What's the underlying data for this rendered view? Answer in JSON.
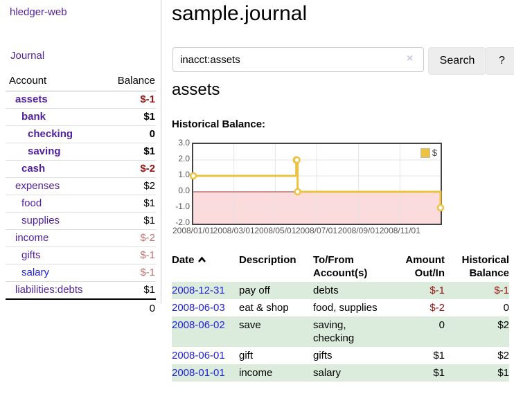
{
  "brand": "hledger-web",
  "nav": {
    "journal": "Journal"
  },
  "colors": {
    "link_purple": "#52219f",
    "link_blue": "#1f1fd6",
    "negative_strong": "#941111",
    "negative_soft": "#bf7070",
    "row_highlight_green": "#dcecdc",
    "series_gold": "#edc240"
  },
  "sidebar": {
    "account_header": "Account",
    "balance_header": "Balance",
    "accounts": [
      {
        "name": "assets",
        "indent": 1,
        "balance": "$-1",
        "bold": true,
        "balance_style": "neg-strong"
      },
      {
        "name": "bank",
        "indent": 2,
        "balance": "$1",
        "bold": true,
        "balance_style": "pos"
      },
      {
        "name": "checking",
        "indent": 3,
        "balance": "0",
        "bold": true,
        "balance_style": "pos"
      },
      {
        "name": "saving",
        "indent": 3,
        "balance": "$1",
        "bold": true,
        "balance_style": "pos"
      },
      {
        "name": "cash",
        "indent": 2,
        "balance": "$-2",
        "bold": true,
        "balance_style": "neg-strong"
      },
      {
        "name": "expenses",
        "indent": 1,
        "balance": "$2",
        "bold": false,
        "balance_style": "pos"
      },
      {
        "name": "food",
        "indent": 2,
        "balance": "$1",
        "bold": false,
        "balance_style": "pos"
      },
      {
        "name": "supplies",
        "indent": 2,
        "balance": "$1",
        "bold": false,
        "balance_style": "pos"
      },
      {
        "name": "income",
        "indent": 1,
        "balance": "$-2",
        "bold": false,
        "balance_style": "neg-soft"
      },
      {
        "name": "gifts",
        "indent": 2,
        "balance": "$-1",
        "bold": false,
        "balance_style": "neg-soft"
      },
      {
        "name": "salary",
        "indent": 2,
        "balance": "$-1",
        "bold": false,
        "balance_style": "neg-soft",
        "link_style": "blue"
      },
      {
        "name": "liabilities:debts",
        "indent": 1,
        "balance": "$1",
        "bold": false,
        "balance_style": "pos"
      }
    ],
    "total": "0"
  },
  "main": {
    "title": "sample.journal",
    "search": {
      "value": "inacct:assets",
      "clear": "×",
      "search_button": "Search",
      "help_button": "?"
    },
    "account_heading": "assets",
    "chart_title": "Historical Balance:"
  },
  "chart_data": {
    "type": "line",
    "step": true,
    "title": "Historical Balance",
    "legend": {
      "label": "$",
      "position": "top-right"
    },
    "x_ticks": [
      "2008/01/01",
      "2008/03/01",
      "2008/05/01",
      "2008/07/01",
      "2008/09/01",
      "2008/11/01"
    ],
    "y_ticks": [
      "3.0",
      "2.0",
      "1.0",
      "0.0",
      "-1.0",
      "-2.0"
    ],
    "ylim": [
      -2,
      3
    ],
    "x_range": [
      "2008/01/01",
      "2008/12/31"
    ],
    "grid": true,
    "series": [
      {
        "name": "$",
        "color": "#edc240",
        "points": [
          {
            "date": "2008/01/01",
            "value": 1
          },
          {
            "date": "2008/06/01",
            "value": 2
          },
          {
            "date": "2008/06/02",
            "value": 2
          },
          {
            "date": "2008/06/03",
            "value": 0
          },
          {
            "date": "2008/12/31",
            "value": -1
          }
        ]
      }
    ],
    "negative_region": {
      "below": 0,
      "color": "#fbdbdb"
    },
    "zero_line_color": "#953434",
    "gridline_color": "#e4e4e4",
    "border_color": "#444444"
  },
  "register": {
    "headers": {
      "date": "Date",
      "description": "Description",
      "accounts": "To/From Account(s)",
      "amount": "Amount Out/In",
      "balance": "Historical Balance"
    },
    "rows": [
      {
        "date": "2008-12-31",
        "description": "pay off",
        "accounts": "debts",
        "amount": "$-1",
        "amount_style": "neg",
        "balance": "$-1",
        "balance_style": "neg",
        "highlight": true
      },
      {
        "date": "2008-06-03",
        "description": "eat & shop",
        "accounts": "food, supplies",
        "amount": "$-2",
        "amount_style": "neg",
        "balance": "0",
        "balance_style": "pos",
        "highlight": false
      },
      {
        "date": "2008-06-02",
        "description": "save",
        "accounts": "saving, checking",
        "amount": "0",
        "amount_style": "pos",
        "balance": "$2",
        "balance_style": "pos",
        "highlight": true
      },
      {
        "date": "2008-06-01",
        "description": "gift",
        "accounts": "gifts",
        "amount": "$1",
        "amount_style": "pos",
        "balance": "$2",
        "balance_style": "pos",
        "highlight": false
      },
      {
        "date": "2008-01-01",
        "description": "income",
        "accounts": "salary",
        "amount": "$1",
        "amount_style": "pos",
        "balance": "$1",
        "balance_style": "pos",
        "highlight": true
      }
    ]
  }
}
